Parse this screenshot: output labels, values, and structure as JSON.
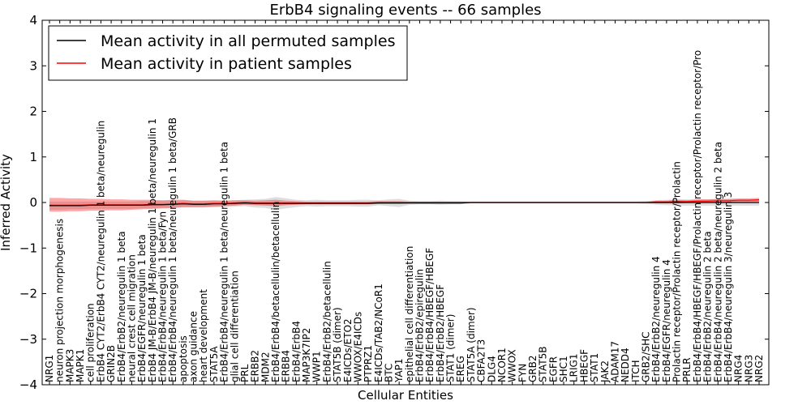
{
  "chart_data": {
    "type": "line",
    "title": "ErbB4 signaling events -- 66 samples",
    "xlabel": "Cellular Entities",
    "ylabel": "Inferred Activity",
    "ylim": [
      -4,
      4
    ],
    "yticks": [
      -4,
      -3,
      -2,
      -1,
      0,
      1,
      2,
      3,
      4
    ],
    "legend_position": "upper-left",
    "categories": [
      "NRG1",
      "neuron projection morphogenesis",
      "MAPK3",
      "MAPK1",
      "cell proliferation",
      "ErbB4 CYT2/ErbB4 CYT2/neuregulin 1 beta/neuregulin",
      "GRIN2B",
      "ErbB4/ErbB2/neuregulin 1 beta",
      "neural crest cell migration",
      "ErbB4/EGFR/neuregulin 1 beta",
      "ErbB4 JM-B/ErbB4 JM-B/neuregulin 1 beta/neuregulin 1",
      "ErbB4/ErbB4/neuregulin 1 beta/Fyn",
      "ErbB4/ErbB4/neuregulin 1 beta/neuregulin 1 beta/GRB",
      "apoptosis",
      "axon guidance",
      "heart development",
      "STAT5A",
      "ErbB4/ErbB4/neuregulin 1 beta/neuregulin 1 beta",
      "glial cell differentiation",
      "PRL",
      "ERBB2",
      "MDM2",
      "ErbB4/ErbB4/betacellulin/betacellulin",
      "ERBB4",
      "ErbB4/ErbB4",
      "MAP3K7IP2",
      "WWP1",
      "ErbB4/ErbB2/betacellulin",
      "STAT5B (dimer)",
      "E4ICDs/ETO2",
      "WWOX/E4ICDs",
      "PTPRZ1",
      "E4ICDs/TAB2/NCoR1",
      "BTC",
      "YAP1",
      "epithelial cell differentiation",
      "ErbB4/ErbB2/epiregulin",
      "ErbB4/ErbB4/HBEGF/HBEGF",
      "ErbB4/ErbB2/HBEGF",
      "STAT1 (dimer)",
      "EREG",
      "STAT5A (dimer)",
      "CBFA2T3",
      "DLG4",
      "NCOR1",
      "WWOX",
      "FYN",
      "GRB2",
      "STAT5B",
      "EGFR",
      "SHC1",
      "LRIG1",
      "HBEGF",
      "STAT1",
      "JAK2",
      "ADAM17",
      "NEDD4",
      "ITCH",
      "GRB2/SHC",
      "ErbB4/ErbB2/neuregulin 4",
      "ErbB4/EGFR/neuregulin 4",
      "Prolactin receptor/Prolactin receptor/Prolactin",
      "PRLR",
      "ErbB4/ErbB4/HBEGF/HBEGF/Prolactin receptor/Prolactin receptor/Pro",
      "ErbB4/ErbB2/neuregulin 2 beta",
      "ErbB4/ErbB4/neuregulin 2 beta/neuregulin 2 beta",
      "ErbB4/ErbB4/neuregulin 3/neuregulin 3",
      "NRG4",
      "NRG3",
      "NRG2"
    ],
    "series": [
      {
        "name": "Mean activity in all permuted samples",
        "color": "#000000",
        "values": [
          -0.07,
          -0.07,
          -0.07,
          -0.07,
          -0.06,
          -0.06,
          -0.06,
          -0.06,
          -0.06,
          -0.06,
          -0.05,
          -0.05,
          -0.04,
          -0.03,
          -0.04,
          -0.04,
          -0.03,
          -0.03,
          -0.02,
          -0.01,
          -0.02,
          -0.02,
          -0.02,
          -0.02,
          -0.02,
          -0.02,
          -0.02,
          -0.02,
          -0.02,
          -0.02,
          -0.02,
          -0.02,
          -0.01,
          -0.01,
          -0.01,
          -0.01,
          -0.01,
          -0.01,
          -0.01,
          -0.01,
          -0.01,
          0,
          0,
          0,
          0,
          0,
          0,
          0,
          0,
          0,
          0,
          0,
          0,
          0,
          0,
          0,
          0,
          0,
          0,
          0,
          0,
          0,
          0,
          0,
          0,
          0,
          0,
          0,
          0,
          0
        ],
        "band_low": [
          -0.16,
          -0.16,
          -0.15,
          -0.15,
          -0.14,
          -0.14,
          -0.14,
          -0.14,
          -0.14,
          -0.13,
          -0.13,
          -0.12,
          -0.12,
          -0.11,
          -0.11,
          -0.11,
          -0.1,
          -0.1,
          -0.09,
          -0.08,
          -0.11,
          -0.12,
          -0.16,
          -0.13,
          -0.1,
          -0.08,
          -0.09,
          -0.08,
          -0.08,
          -0.08,
          -0.09,
          -0.09,
          -0.06,
          -0.08,
          -0.1,
          -0.05,
          -0.04,
          -0.04,
          -0.05,
          -0.04,
          -0.04,
          -0.02,
          -0.02,
          -0.02,
          -0.02,
          -0.02,
          -0.02,
          -0.02,
          -0.02,
          -0.02,
          -0.02,
          -0.02,
          -0.02,
          -0.02,
          -0.02,
          -0.02,
          -0.02,
          -0.02,
          -0.03,
          -0.05,
          -0.06,
          -0.07,
          -0.07,
          -0.07,
          -0.07,
          -0.07,
          -0.07,
          -0.07,
          -0.07,
          -0.07
        ],
        "band_high": [
          0.02,
          0.02,
          0.02,
          0.02,
          0.02,
          0.02,
          0.02,
          0.02,
          0.02,
          0.03,
          0.03,
          0.04,
          0.04,
          0.05,
          0.04,
          0.04,
          0.04,
          0.04,
          0.05,
          0.06,
          0.07,
          0.08,
          0.12,
          0.09,
          0.06,
          0.05,
          0.06,
          0.05,
          0.05,
          0.05,
          0.06,
          0.06,
          0.05,
          0.07,
          0.08,
          0.04,
          0.03,
          0.03,
          0.04,
          0.03,
          0.03,
          0.02,
          0.02,
          0.02,
          0.02,
          0.02,
          0.02,
          0.02,
          0.02,
          0.02,
          0.02,
          0.02,
          0.02,
          0.02,
          0.02,
          0.02,
          0.02,
          0.02,
          0.03,
          0.05,
          0.06,
          0.07,
          0.07,
          0.07,
          0.07,
          0.07,
          0.07,
          0.07,
          0.07,
          0.07
        ]
      },
      {
        "name": "Mean activity in patient samples",
        "color": "#ff0000",
        "values": [
          -0.06,
          -0.06,
          -0.06,
          -0.06,
          -0.05,
          -0.05,
          -0.05,
          -0.05,
          -0.05,
          -0.05,
          -0.04,
          -0.04,
          -0.03,
          -0.02,
          -0.03,
          -0.03,
          -0.02,
          -0.02,
          -0.01,
          0,
          -0.01,
          -0.01,
          -0.01,
          -0.01,
          -0.01,
          -0.01,
          -0.01,
          -0.01,
          -0.01,
          -0.01,
          -0.01,
          -0.01,
          0,
          0,
          0,
          0,
          0,
          0,
          0,
          0,
          0,
          0,
          0,
          0,
          0,
          0,
          0,
          0,
          0,
          0,
          0,
          0,
          0,
          0,
          0,
          0,
          0,
          0,
          0,
          0.01,
          0.01,
          0.02,
          0.02,
          0.03,
          0.03,
          0.04,
          0.04,
          0.05,
          0.05,
          0.06
        ],
        "band_low": [
          -0.2,
          -0.2,
          -0.19,
          -0.19,
          -0.18,
          -0.18,
          -0.17,
          -0.17,
          -0.16,
          -0.15,
          -0.14,
          -0.13,
          -0.12,
          -0.1,
          -0.1,
          -0.1,
          -0.09,
          -0.08,
          -0.07,
          -0.05,
          -0.06,
          -0.07,
          -0.08,
          -0.06,
          -0.05,
          -0.04,
          -0.04,
          -0.04,
          -0.04,
          -0.04,
          -0.04,
          -0.04,
          -0.03,
          -0.03,
          -0.03,
          -0.02,
          -0.02,
          -0.02,
          -0.02,
          -0.02,
          -0.02,
          -0.01,
          -0.01,
          -0.01,
          -0.01,
          -0.01,
          -0.01,
          -0.01,
          -0.01,
          -0.01,
          -0.01,
          -0.01,
          -0.01,
          -0.01,
          -0.01,
          -0.01,
          -0.01,
          -0.01,
          -0.01,
          -0.02,
          -0.02,
          -0.02,
          -0.01,
          -0.01,
          -0.01,
          0,
          0,
          0.01,
          0.01,
          0.02
        ],
        "band_high": [
          0.1,
          0.1,
          0.09,
          0.09,
          0.08,
          0.08,
          0.07,
          0.07,
          0.06,
          0.06,
          0.06,
          0.05,
          0.06,
          0.06,
          0.04,
          0.04,
          0.05,
          0.04,
          0.05,
          0.05,
          0.04,
          0.05,
          0.06,
          0.04,
          0.03,
          0.02,
          0.02,
          0.02,
          0.02,
          0.02,
          0.02,
          0.02,
          0.03,
          0.03,
          0.03,
          0.02,
          0.02,
          0.02,
          0.02,
          0.02,
          0.02,
          0.01,
          0.01,
          0.01,
          0.01,
          0.01,
          0.01,
          0.01,
          0.01,
          0.01,
          0.01,
          0.01,
          0.01,
          0.01,
          0.01,
          0.01,
          0.01,
          0.01,
          0.01,
          0.04,
          0.04,
          0.06,
          0.05,
          0.07,
          0.07,
          0.08,
          0.08,
          0.09,
          0.09,
          0.1
        ]
      }
    ]
  }
}
